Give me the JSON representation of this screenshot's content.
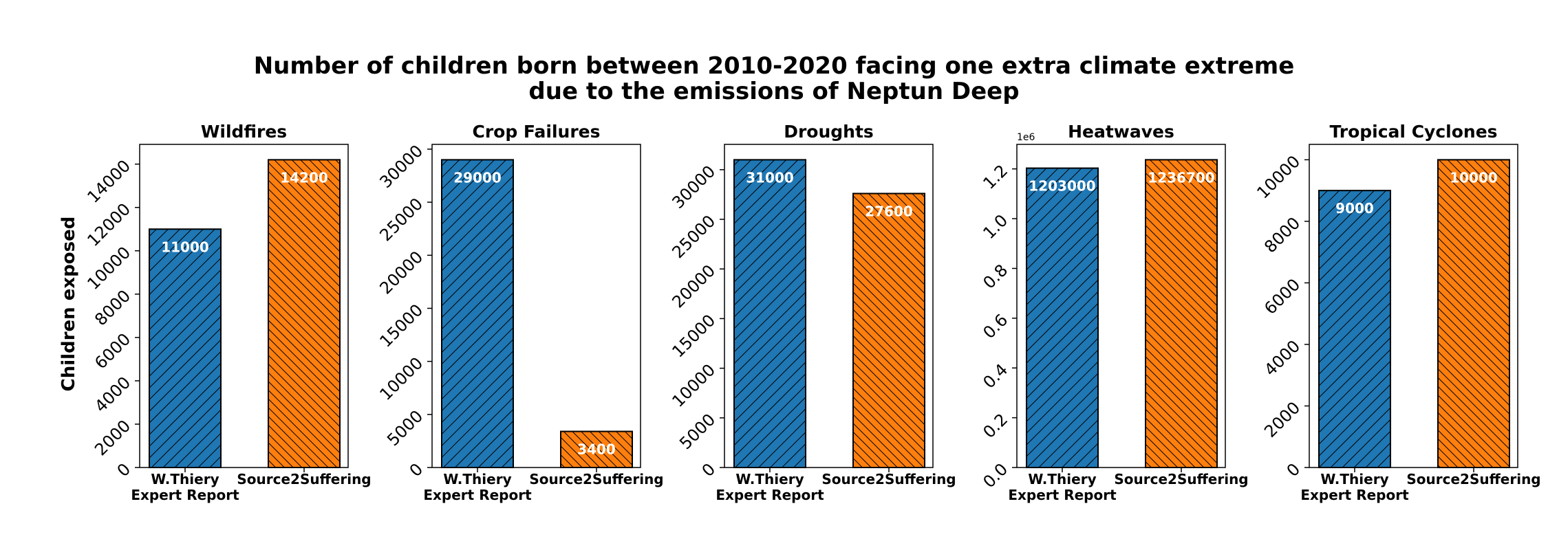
{
  "title_lines": [
    "Number of children born between 2010-2020 facing one extra climate extreme",
    "due to the emissions of Neptun Deep"
  ],
  "ylabel": "Children exposed",
  "colors": {
    "W.Thiery Expert Report": "#1f77b4",
    "Source2Suffering": "#ff7f0e"
  },
  "chart_data": [
    {
      "type": "bar",
      "title": "Wildfires",
      "categories": [
        "W.Thiery\nExpert Report",
        "Source2Suffering"
      ],
      "values": [
        11000,
        14200
      ],
      "value_labels": [
        "11000",
        "14200"
      ],
      "ylim": [
        0,
        14910
      ],
      "yticks": [
        0,
        2000,
        4000,
        6000,
        8000,
        10000,
        12000,
        14000
      ],
      "ytick_labels": [
        "0",
        "2000",
        "4000",
        "6000",
        "8000",
        "10000",
        "12000",
        "14000"
      ]
    },
    {
      "type": "bar",
      "title": "Crop Failures",
      "categories": [
        "W.Thiery\nExpert Report",
        "Source2Suffering"
      ],
      "values": [
        29000,
        3400
      ],
      "value_labels": [
        "29000",
        "3400"
      ],
      "ylim": [
        0,
        30450
      ],
      "yticks": [
        0,
        5000,
        10000,
        15000,
        20000,
        25000,
        30000
      ],
      "ytick_labels": [
        "0",
        "5000",
        "10000",
        "15000",
        "20000",
        "25000",
        "30000"
      ]
    },
    {
      "type": "bar",
      "title": "Droughts",
      "categories": [
        "W.Thiery\nExpert Report",
        "Source2Suffering"
      ],
      "values": [
        31000,
        27600
      ],
      "value_labels": [
        "31000",
        "27600"
      ],
      "ylim": [
        0,
        32550
      ],
      "yticks": [
        0,
        5000,
        10000,
        15000,
        20000,
        25000,
        30000
      ],
      "ytick_labels": [
        "0",
        "5000",
        "10000",
        "15000",
        "20000",
        "25000",
        "30000"
      ]
    },
    {
      "type": "bar",
      "title": "Heatwaves",
      "categories": [
        "W.Thiery\nExpert Report",
        "Source2Suffering"
      ],
      "values": [
        1203000,
        1236700
      ],
      "value_labels": [
        "1203000",
        "1236700"
      ],
      "ylim": [
        0,
        1298535
      ],
      "yticks": [
        0,
        200000,
        400000,
        600000,
        800000,
        1000000,
        1200000
      ],
      "ytick_labels": [
        "0.0",
        "0.2",
        "0.4",
        "0.6",
        "0.8",
        "1.0",
        "1.2"
      ],
      "offset_text": "1e6"
    },
    {
      "type": "bar",
      "title": "Tropical Cyclones",
      "categories": [
        "W.Thiery\nExpert Report",
        "Source2Suffering"
      ],
      "values": [
        9000,
        10000
      ],
      "value_labels": [
        "9000",
        "10000"
      ],
      "ylim": [
        0,
        10500
      ],
      "yticks": [
        0,
        2000,
        4000,
        6000,
        8000,
        10000
      ],
      "ytick_labels": [
        "0",
        "2000",
        "4000",
        "6000",
        "8000",
        "10000"
      ]
    }
  ]
}
